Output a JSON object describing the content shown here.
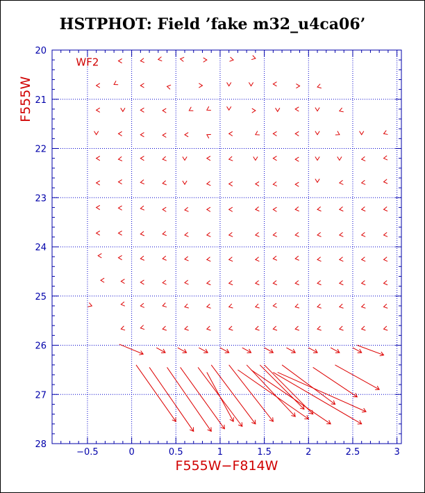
{
  "chart_data": {
    "type": "vector-field",
    "title": "HSTPHOT: Field ’fake m32_u4ca06’",
    "xlabel": "F555W−F814W",
    "ylabel": "F555W",
    "panel_label": "WF2",
    "xlim": [
      -0.9,
      3.05
    ],
    "ylim": [
      28,
      20
    ],
    "x_ticks": [
      -0.5,
      0,
      0.5,
      1,
      1.5,
      2,
      2.5,
      3
    ],
    "y_ticks": [
      20,
      21,
      22,
      23,
      24,
      25,
      26,
      27,
      28
    ],
    "x_tick_labels": [
      "−0.5",
      "0",
      "0.5",
      "1",
      "1.5",
      "2",
      "2.5",
      "3"
    ],
    "y_tick_labels": [
      "20",
      "21",
      "22",
      "23",
      "24",
      "25",
      "26",
      "27",
      "28"
    ],
    "grid": true,
    "vectors": [
      {
        "x": -0.15,
        "y": 20.22,
        "dx": 0.02,
        "dy": 0.0
      },
      {
        "x": 0.1,
        "y": 20.22,
        "dx": 0.04,
        "dy": -0.01
      },
      {
        "x": 0.3,
        "y": 20.19,
        "dx": 0.04,
        "dy": -0.01
      },
      {
        "x": 0.55,
        "y": 20.18,
        "dx": 0.04,
        "dy": 0.01
      },
      {
        "x": 0.85,
        "y": 20.2,
        "dx": -0.03,
        "dy": 0.0
      },
      {
        "x": 1.15,
        "y": 20.2,
        "dx": -0.03,
        "dy": -0.01
      },
      {
        "x": 1.4,
        "y": 20.17,
        "dx": -0.02,
        "dy": -0.01
      },
      {
        "x": -0.4,
        "y": 20.72,
        "dx": 0.03,
        "dy": 0.0
      },
      {
        "x": -0.2,
        "y": 20.7,
        "dx": 0.02,
        "dy": -0.02
      },
      {
        "x": 0.1,
        "y": 20.72,
        "dx": 0.03,
        "dy": 0.0
      },
      {
        "x": 0.4,
        "y": 20.74,
        "dx": 0.03,
        "dy": 0.01
      },
      {
        "x": 0.8,
        "y": 20.72,
        "dx": -0.03,
        "dy": 0.0
      },
      {
        "x": 1.1,
        "y": 20.73,
        "dx": 0.0,
        "dy": -0.03
      },
      {
        "x": 1.35,
        "y": 20.73,
        "dx": 0.0,
        "dy": -0.03
      },
      {
        "x": 1.6,
        "y": 20.69,
        "dx": 0.03,
        "dy": 0.0
      },
      {
        "x": 1.9,
        "y": 20.73,
        "dx": -0.03,
        "dy": 0.0
      },
      {
        "x": 2.1,
        "y": 20.75,
        "dx": 0.04,
        "dy": -0.02
      },
      {
        "x": -0.4,
        "y": 21.22,
        "dx": 0.03,
        "dy": 0.0
      },
      {
        "x": -0.1,
        "y": 21.25,
        "dx": 0.0,
        "dy": -0.03
      },
      {
        "x": 0.1,
        "y": 21.22,
        "dx": 0.03,
        "dy": 0.0
      },
      {
        "x": 0.35,
        "y": 21.23,
        "dx": 0.03,
        "dy": 0.0
      },
      {
        "x": 0.65,
        "y": 21.23,
        "dx": 0.02,
        "dy": -0.02
      },
      {
        "x": 0.85,
        "y": 21.22,
        "dx": 0.02,
        "dy": -0.02
      },
      {
        "x": 1.1,
        "y": 21.22,
        "dx": 0.0,
        "dy": -0.03
      },
      {
        "x": 1.4,
        "y": 21.23,
        "dx": -0.03,
        "dy": 0.0
      },
      {
        "x": 1.65,
        "y": 21.25,
        "dx": 0.0,
        "dy": -0.03
      },
      {
        "x": 1.85,
        "y": 21.2,
        "dx": 0.04,
        "dy": 0.0
      },
      {
        "x": 2.1,
        "y": 21.24,
        "dx": 0.0,
        "dy": -0.03
      },
      {
        "x": 2.35,
        "y": 21.24,
        "dx": 0.03,
        "dy": -0.02
      },
      {
        "x": -0.4,
        "y": 21.72,
        "dx": 0.0,
        "dy": -0.03
      },
      {
        "x": -0.15,
        "y": 21.7,
        "dx": 0.03,
        "dy": 0.0
      },
      {
        "x": 0.1,
        "y": 21.72,
        "dx": 0.03,
        "dy": 0.0
      },
      {
        "x": 0.35,
        "y": 21.73,
        "dx": 0.03,
        "dy": 0.0
      },
      {
        "x": 0.6,
        "y": 21.72,
        "dx": 0.03,
        "dy": 0.0
      },
      {
        "x": 0.85,
        "y": 21.72,
        "dx": 0.02,
        "dy": 0.02
      },
      {
        "x": 1.1,
        "y": 21.7,
        "dx": 0.03,
        "dy": 0.0
      },
      {
        "x": 1.4,
        "y": 21.72,
        "dx": 0.02,
        "dy": -0.02
      },
      {
        "x": 1.6,
        "y": 21.7,
        "dx": 0.03,
        "dy": 0.0
      },
      {
        "x": 1.85,
        "y": 21.7,
        "dx": 0.03,
        "dy": 0.0
      },
      {
        "x": 2.1,
        "y": 21.72,
        "dx": 0.0,
        "dy": -0.03
      },
      {
        "x": 2.35,
        "y": 21.72,
        "dx": -0.02,
        "dy": -0.02
      },
      {
        "x": 2.6,
        "y": 21.72,
        "dx": 0.0,
        "dy": -0.03
      },
      {
        "x": 2.85,
        "y": 21.7,
        "dx": 0.03,
        "dy": -0.02
      },
      {
        "x": -0.4,
        "y": 22.2,
        "dx": 0.03,
        "dy": 0.0
      },
      {
        "x": -0.15,
        "y": 22.22,
        "dx": 0.04,
        "dy": -0.01
      },
      {
        "x": 0.1,
        "y": 22.2,
        "dx": 0.03,
        "dy": 0.0
      },
      {
        "x": 0.35,
        "y": 22.22,
        "dx": 0.03,
        "dy": -0.01
      },
      {
        "x": 0.6,
        "y": 22.24,
        "dx": 0.0,
        "dy": -0.03
      },
      {
        "x": 0.85,
        "y": 22.2,
        "dx": 0.03,
        "dy": 0.0
      },
      {
        "x": 1.1,
        "y": 22.22,
        "dx": 0.03,
        "dy": -0.01
      },
      {
        "x": 1.4,
        "y": 22.24,
        "dx": 0.0,
        "dy": -0.03
      },
      {
        "x": 1.6,
        "y": 22.2,
        "dx": 0.03,
        "dy": 0.0
      },
      {
        "x": 1.85,
        "y": 22.22,
        "dx": 0.03,
        "dy": 0.0
      },
      {
        "x": 2.1,
        "y": 22.24,
        "dx": 0.0,
        "dy": -0.03
      },
      {
        "x": 2.35,
        "y": 22.24,
        "dx": 0.0,
        "dy": -0.03
      },
      {
        "x": 2.6,
        "y": 22.22,
        "dx": 0.04,
        "dy": -0.01
      },
      {
        "x": 2.85,
        "y": 22.2,
        "dx": 0.04,
        "dy": -0.01
      },
      {
        "x": -0.4,
        "y": 22.7,
        "dx": 0.03,
        "dy": 0.0
      },
      {
        "x": -0.15,
        "y": 22.68,
        "dx": 0.03,
        "dy": 0.0
      },
      {
        "x": 0.1,
        "y": 22.69,
        "dx": 0.04,
        "dy": -0.01
      },
      {
        "x": 0.35,
        "y": 22.71,
        "dx": 0.03,
        "dy": -0.01
      },
      {
        "x": 0.6,
        "y": 22.73,
        "dx": 0.0,
        "dy": -0.03
      },
      {
        "x": 0.85,
        "y": 22.72,
        "dx": 0.04,
        "dy": -0.01
      },
      {
        "x": 1.1,
        "y": 22.72,
        "dx": 0.03,
        "dy": 0.0
      },
      {
        "x": 1.4,
        "y": 22.72,
        "dx": 0.03,
        "dy": 0.0
      },
      {
        "x": 1.6,
        "y": 22.73,
        "dx": 0.04,
        "dy": -0.01
      },
      {
        "x": 1.85,
        "y": 22.73,
        "dx": 0.03,
        "dy": 0.0
      },
      {
        "x": 2.1,
        "y": 22.69,
        "dx": 0.0,
        "dy": -0.03
      },
      {
        "x": 2.35,
        "y": 22.7,
        "dx": 0.04,
        "dy": -0.01
      },
      {
        "x": 2.6,
        "y": 22.7,
        "dx": 0.04,
        "dy": -0.01
      },
      {
        "x": 2.85,
        "y": 22.68,
        "dx": 0.04,
        "dy": -0.01
      },
      {
        "x": -0.4,
        "y": 23.2,
        "dx": 0.03,
        "dy": 0.0
      },
      {
        "x": -0.15,
        "y": 23.21,
        "dx": 0.03,
        "dy": 0.0
      },
      {
        "x": 0.1,
        "y": 23.22,
        "dx": 0.04,
        "dy": -0.01
      },
      {
        "x": 0.35,
        "y": 23.24,
        "dx": 0.03,
        "dy": 0.0
      },
      {
        "x": 0.6,
        "y": 23.25,
        "dx": 0.04,
        "dy": -0.01
      },
      {
        "x": 0.85,
        "y": 23.24,
        "dx": 0.03,
        "dy": 0.0
      },
      {
        "x": 1.1,
        "y": 23.24,
        "dx": 0.03,
        "dy": 0.0
      },
      {
        "x": 1.4,
        "y": 23.24,
        "dx": 0.04,
        "dy": -0.01
      },
      {
        "x": 1.6,
        "y": 23.24,
        "dx": 0.03,
        "dy": 0.0
      },
      {
        "x": 1.85,
        "y": 23.24,
        "dx": 0.04,
        "dy": -0.01
      },
      {
        "x": 2.1,
        "y": 23.24,
        "dx": 0.04,
        "dy": -0.01
      },
      {
        "x": 2.35,
        "y": 23.24,
        "dx": 0.04,
        "dy": -0.01
      },
      {
        "x": 2.6,
        "y": 23.24,
        "dx": 0.04,
        "dy": -0.01
      },
      {
        "x": 2.85,
        "y": 23.24,
        "dx": 0.04,
        "dy": -0.01
      },
      {
        "x": -0.4,
        "y": 23.72,
        "dx": 0.03,
        "dy": 0.0
      },
      {
        "x": -0.15,
        "y": 23.72,
        "dx": 0.03,
        "dy": 0.0
      },
      {
        "x": 0.1,
        "y": 23.74,
        "dx": 0.04,
        "dy": -0.01
      },
      {
        "x": 0.35,
        "y": 23.74,
        "dx": 0.03,
        "dy": -0.01
      },
      {
        "x": 0.6,
        "y": 23.76,
        "dx": 0.04,
        "dy": -0.01
      },
      {
        "x": 0.85,
        "y": 23.76,
        "dx": 0.04,
        "dy": -0.01
      },
      {
        "x": 1.1,
        "y": 23.76,
        "dx": 0.04,
        "dy": -0.01
      },
      {
        "x": 1.4,
        "y": 23.76,
        "dx": 0.04,
        "dy": -0.01
      },
      {
        "x": 1.6,
        "y": 23.76,
        "dx": 0.04,
        "dy": -0.01
      },
      {
        "x": 1.85,
        "y": 23.76,
        "dx": 0.04,
        "dy": -0.01
      },
      {
        "x": 2.1,
        "y": 23.76,
        "dx": 0.04,
        "dy": -0.01
      },
      {
        "x": 2.35,
        "y": 23.76,
        "dx": 0.04,
        "dy": -0.01
      },
      {
        "x": 2.6,
        "y": 23.76,
        "dx": 0.04,
        "dy": -0.01
      },
      {
        "x": 2.85,
        "y": 23.76,
        "dx": 0.04,
        "dy": -0.01
      },
      {
        "x": -0.38,
        "y": 24.18,
        "dx": 0.07,
        "dy": 0.0
      },
      {
        "x": -0.15,
        "y": 24.22,
        "dx": 0.05,
        "dy": 0.0
      },
      {
        "x": 0.1,
        "y": 24.24,
        "dx": 0.04,
        "dy": -0.01
      },
      {
        "x": 0.35,
        "y": 24.24,
        "dx": 0.04,
        "dy": -0.01
      },
      {
        "x": 0.6,
        "y": 24.25,
        "dx": 0.04,
        "dy": -0.01
      },
      {
        "x": 0.85,
        "y": 24.26,
        "dx": 0.04,
        "dy": -0.01
      },
      {
        "x": 1.1,
        "y": 24.26,
        "dx": 0.04,
        "dy": -0.01
      },
      {
        "x": 1.4,
        "y": 24.26,
        "dx": 0.04,
        "dy": -0.01
      },
      {
        "x": 1.6,
        "y": 24.24,
        "dx": 0.04,
        "dy": -0.01
      },
      {
        "x": 1.85,
        "y": 24.24,
        "dx": 0.04,
        "dy": -0.01
      },
      {
        "x": 2.1,
        "y": 24.26,
        "dx": 0.04,
        "dy": -0.01
      },
      {
        "x": 2.35,
        "y": 24.26,
        "dx": 0.04,
        "dy": -0.01
      },
      {
        "x": 2.6,
        "y": 24.26,
        "dx": 0.04,
        "dy": -0.01
      },
      {
        "x": 2.85,
        "y": 24.26,
        "dx": 0.04,
        "dy": -0.01
      },
      {
        "x": -0.35,
        "y": 24.68,
        "dx": 0.07,
        "dy": 0.0
      },
      {
        "x": -0.12,
        "y": 24.7,
        "dx": 0.07,
        "dy": 0.0
      },
      {
        "x": 0.1,
        "y": 24.72,
        "dx": 0.05,
        "dy": 0.0
      },
      {
        "x": 0.35,
        "y": 24.73,
        "dx": 0.05,
        "dy": -0.01
      },
      {
        "x": 0.6,
        "y": 24.73,
        "dx": 0.04,
        "dy": -0.01
      },
      {
        "x": 0.85,
        "y": 24.74,
        "dx": 0.04,
        "dy": -0.01
      },
      {
        "x": 1.1,
        "y": 24.74,
        "dx": 0.04,
        "dy": -0.01
      },
      {
        "x": 1.4,
        "y": 24.74,
        "dx": 0.04,
        "dy": -0.01
      },
      {
        "x": 1.6,
        "y": 24.74,
        "dx": 0.04,
        "dy": -0.01
      },
      {
        "x": 1.85,
        "y": 24.74,
        "dx": 0.04,
        "dy": -0.01
      },
      {
        "x": 2.1,
        "y": 24.74,
        "dx": 0.04,
        "dy": -0.01
      },
      {
        "x": 2.35,
        "y": 24.74,
        "dx": 0.04,
        "dy": -0.01
      },
      {
        "x": 2.6,
        "y": 24.74,
        "dx": 0.04,
        "dy": -0.01
      },
      {
        "x": 2.85,
        "y": 24.74,
        "dx": 0.04,
        "dy": -0.01
      },
      {
        "x": -0.45,
        "y": 25.2,
        "dx": -0.05,
        "dy": -0.03
      },
      {
        "x": -0.12,
        "y": 25.17,
        "dx": 0.04,
        "dy": -0.01
      },
      {
        "x": 0.1,
        "y": 25.2,
        "dx": 0.04,
        "dy": -0.01
      },
      {
        "x": 0.35,
        "y": 25.2,
        "dx": 0.04,
        "dy": -0.02
      },
      {
        "x": 0.6,
        "y": 25.22,
        "dx": 0.04,
        "dy": -0.02
      },
      {
        "x": 0.85,
        "y": 25.22,
        "dx": 0.05,
        "dy": -0.02
      },
      {
        "x": 1.1,
        "y": 25.22,
        "dx": 0.04,
        "dy": -0.02
      },
      {
        "x": 1.4,
        "y": 25.22,
        "dx": 0.04,
        "dy": -0.02
      },
      {
        "x": 1.6,
        "y": 25.2,
        "dx": 0.04,
        "dy": -0.01
      },
      {
        "x": 1.85,
        "y": 25.22,
        "dx": 0.04,
        "dy": -0.02
      },
      {
        "x": 2.1,
        "y": 25.22,
        "dx": 0.05,
        "dy": -0.02
      },
      {
        "x": 2.35,
        "y": 25.22,
        "dx": 0.05,
        "dy": -0.02
      },
      {
        "x": 2.6,
        "y": 25.22,
        "dx": 0.05,
        "dy": -0.02
      },
      {
        "x": 2.85,
        "y": 25.22,
        "dx": 0.05,
        "dy": -0.02
      },
      {
        "x": -0.12,
        "y": 25.67,
        "dx": 0.04,
        "dy": -0.02
      },
      {
        "x": 0.1,
        "y": 25.65,
        "dx": 0.05,
        "dy": -0.02
      },
      {
        "x": 0.35,
        "y": 25.67,
        "dx": 0.05,
        "dy": -0.02
      },
      {
        "x": 0.6,
        "y": 25.67,
        "dx": 0.05,
        "dy": -0.02
      },
      {
        "x": 0.85,
        "y": 25.67,
        "dx": 0.05,
        "dy": -0.02
      },
      {
        "x": 1.1,
        "y": 25.67,
        "dx": 0.05,
        "dy": -0.02
      },
      {
        "x": 1.4,
        "y": 25.67,
        "dx": 0.05,
        "dy": -0.02
      },
      {
        "x": 1.6,
        "y": 25.67,
        "dx": 0.05,
        "dy": -0.02
      },
      {
        "x": 1.85,
        "y": 25.67,
        "dx": 0.05,
        "dy": -0.02
      },
      {
        "x": 2.1,
        "y": 25.67,
        "dx": 0.05,
        "dy": -0.02
      },
      {
        "x": 2.35,
        "y": 25.67,
        "dx": 0.05,
        "dy": -0.02
      },
      {
        "x": 2.6,
        "y": 25.67,
        "dx": 0.05,
        "dy": -0.02
      },
      {
        "x": 2.85,
        "y": 25.67,
        "dx": 0.05,
        "dy": -0.02
      },
      {
        "x": 0.13,
        "y": 26.18,
        "dx": -0.27,
        "dy": -0.2
      },
      {
        "x": 0.38,
        "y": 26.15,
        "dx": -0.1,
        "dy": -0.1
      },
      {
        "x": 0.62,
        "y": 26.15,
        "dx": -0.1,
        "dy": -0.1
      },
      {
        "x": 0.86,
        "y": 26.15,
        "dx": -0.1,
        "dy": -0.1
      },
      {
        "x": 1.1,
        "y": 26.15,
        "dx": -0.1,
        "dy": -0.1
      },
      {
        "x": 1.35,
        "y": 26.15,
        "dx": -0.1,
        "dy": -0.1
      },
      {
        "x": 1.6,
        "y": 26.15,
        "dx": -0.1,
        "dy": -0.1
      },
      {
        "x": 1.85,
        "y": 26.15,
        "dx": -0.1,
        "dy": -0.1
      },
      {
        "x": 2.1,
        "y": 26.15,
        "dx": -0.1,
        "dy": -0.1
      },
      {
        "x": 2.35,
        "y": 26.15,
        "dx": -0.1,
        "dy": -0.1
      },
      {
        "x": 2.6,
        "y": 26.15,
        "dx": -0.1,
        "dy": -0.1
      },
      {
        "x": 2.85,
        "y": 26.2,
        "dx": -0.3,
        "dy": -0.2
      },
      {
        "x": 0.5,
        "y": 27.55,
        "dx": -0.45,
        "dy": -1.15
      },
      {
        "x": 0.7,
        "y": 27.75,
        "dx": -0.5,
        "dy": -1.3
      },
      {
        "x": 0.9,
        "y": 27.75,
        "dx": -0.5,
        "dy": -1.3
      },
      {
        "x": 1.05,
        "y": 27.7,
        "dx": -0.5,
        "dy": -1.25
      },
      {
        "x": 1.25,
        "y": 27.65,
        "dx": -0.5,
        "dy": -1.2
      },
      {
        "x": 1.4,
        "y": 27.6,
        "dx": -0.5,
        "dy": -1.2
      },
      {
        "x": 1.6,
        "y": 27.55,
        "dx": -0.5,
        "dy": -1.15
      },
      {
        "x": 1.85,
        "y": 27.45,
        "dx": -0.55,
        "dy": -1.05
      },
      {
        "x": 2.05,
        "y": 27.4,
        "dx": -0.55,
        "dy": -1.0
      },
      {
        "x": 2.3,
        "y": 27.2,
        "dx": -0.6,
        "dy": -0.8
      },
      {
        "x": 2.55,
        "y": 27.05,
        "dx": -0.5,
        "dy": -0.6
      },
      {
        "x": 2.8,
        "y": 26.9,
        "dx": -0.5,
        "dy": -0.5
      },
      {
        "x": 2.0,
        "y": 27.5,
        "dx": -0.8,
        "dy": -1.0
      },
      {
        "x": 2.25,
        "y": 27.6,
        "dx": -0.9,
        "dy": -1.1
      },
      {
        "x": 2.6,
        "y": 27.6,
        "dx": -1.0,
        "dy": -1.05
      },
      {
        "x": 2.65,
        "y": 27.35,
        "dx": -1.0,
        "dy": -0.8
      },
      {
        "x": 1.15,
        "y": 27.55,
        "dx": -0.3,
        "dy": -1.0
      },
      {
        "x": 1.95,
        "y": 27.3,
        "dx": -0.5,
        "dy": -0.9
      }
    ],
    "colors": {
      "axes": "#0000aa",
      "grid": "#0000cc",
      "vectors": "#dd0000",
      "labels": "#d00000",
      "title": "#000000"
    }
  }
}
